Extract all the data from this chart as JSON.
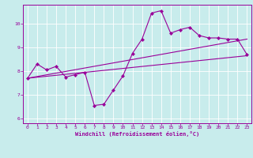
{
  "bg_color": "#c8ecec",
  "line_color": "#990099",
  "grid_color": "#ffffff",
  "xlim": [
    -0.5,
    23.5
  ],
  "ylim": [
    5.8,
    10.8
  ],
  "xticks": [
    0,
    1,
    2,
    3,
    4,
    5,
    6,
    7,
    8,
    9,
    10,
    11,
    12,
    13,
    14,
    15,
    16,
    17,
    18,
    19,
    20,
    21,
    22,
    23
  ],
  "yticks": [
    6,
    7,
    8,
    9,
    10
  ],
  "xlabel": "Windchill (Refroidissement éolien,°C)",
  "main_x": [
    0,
    1,
    2,
    3,
    4,
    5,
    6,
    7,
    8,
    9,
    10,
    11,
    12,
    13,
    14,
    15,
    16,
    17,
    18,
    19,
    20,
    21,
    22,
    23
  ],
  "main_y": [
    7.7,
    8.3,
    8.05,
    8.2,
    7.75,
    7.85,
    7.95,
    6.55,
    6.6,
    7.2,
    7.8,
    8.75,
    9.35,
    10.45,
    10.55,
    9.6,
    9.75,
    9.85,
    9.5,
    9.4,
    9.4,
    9.35,
    9.35,
    8.7
  ],
  "trend1_x": [
    0,
    23
  ],
  "trend1_y": [
    7.7,
    8.65
  ],
  "trend2_x": [
    0,
    23
  ],
  "trend2_y": [
    7.7,
    9.35
  ],
  "line_width": 0.8,
  "marker_size": 2.2
}
